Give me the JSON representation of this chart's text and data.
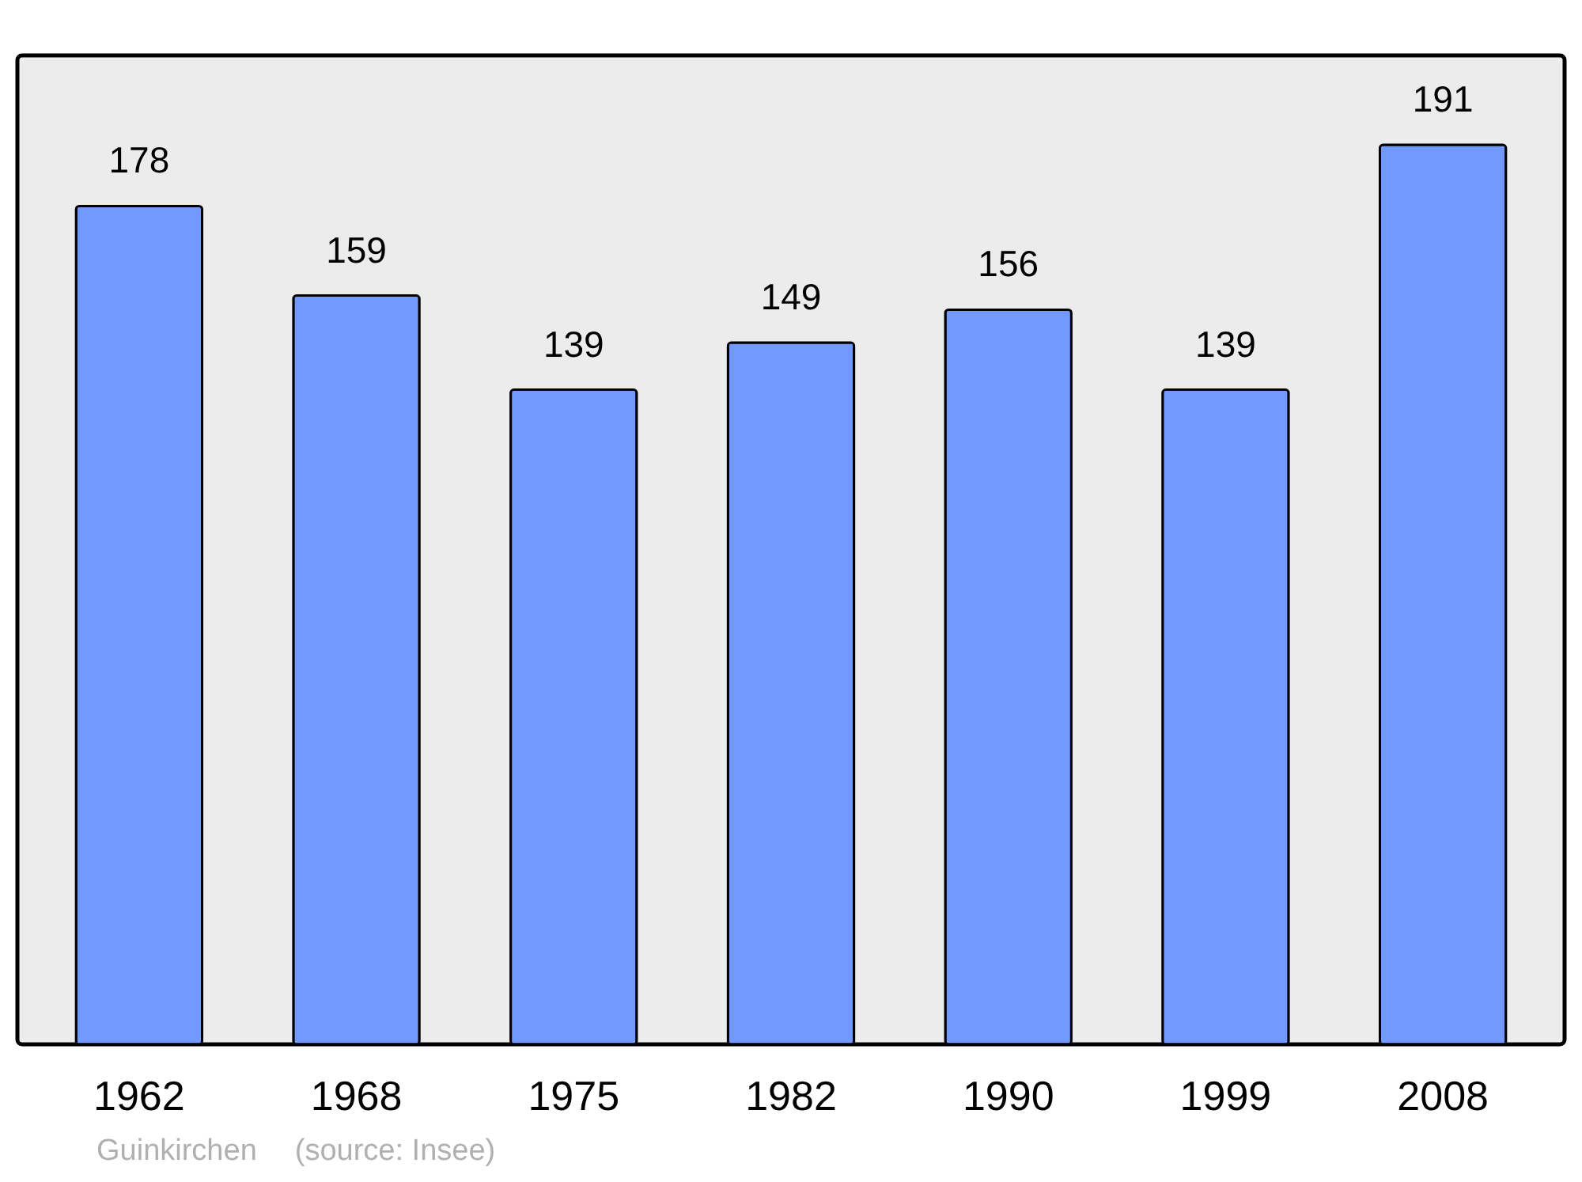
{
  "chart_data": {
    "type": "bar",
    "categories": [
      "1962",
      "1968",
      "1975",
      "1982",
      "1990",
      "1999",
      "2008"
    ],
    "values": [
      178,
      159,
      139,
      149,
      156,
      139,
      191
    ],
    "color": "#7299ff",
    "ylim": [
      0,
      210
    ],
    "data_labels": true,
    "grid": false,
    "annotations": [
      "Guinkirchen",
      "(source: Insee)"
    ]
  }
}
